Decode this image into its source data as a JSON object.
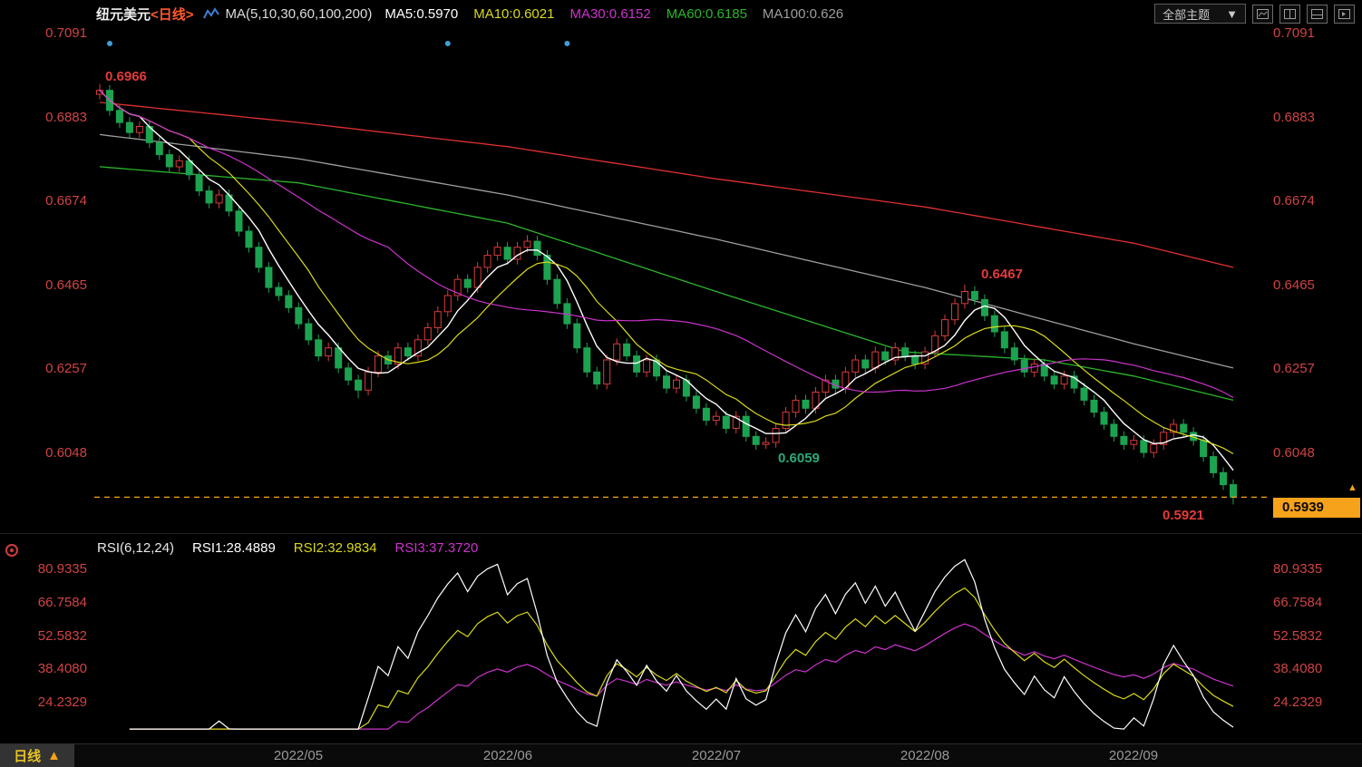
{
  "header": {
    "symbol": "纽元美元",
    "period_tag": "<日线>",
    "ma_group_label": "MA(5,10,30,60,100,200)",
    "ma_items": [
      {
        "label": "MA5:0.5970",
        "color": "#ffffff"
      },
      {
        "label": "MA10:0.6021",
        "color": "#d9d919"
      },
      {
        "label": "MA30:0.6152",
        "color": "#cc33cc"
      },
      {
        "label": "MA60:0.6185",
        "color": "#2ab52a"
      },
      {
        "label": "MA100:0.626",
        "color": "#9e9e9e"
      }
    ],
    "theme_button": {
      "label": "全部主题",
      "arrow": "▼"
    }
  },
  "rsi_header": {
    "label": "RSI(6,12,24)",
    "label_color": "#e8e8e8",
    "items": [
      {
        "label": "RSI1:28.4889",
        "color": "#ffffff"
      },
      {
        "label": "RSI2:32.9834",
        "color": "#d9d919"
      },
      {
        "label": "RSI3:37.3720",
        "color": "#cc33cc"
      }
    ]
  },
  "footer": {
    "period_label": "日线",
    "period_label_color": "#e8c321",
    "arrow": "▲",
    "arrow_color": "#f7a21b"
  },
  "chart_data": {
    "type": "candlestick",
    "title": "纽元美元 日线 (NZD/USD daily with MA overlays and RSI)",
    "price_axis_ticks": [
      0.7091,
      0.6883,
      0.6674,
      0.6465,
      0.6257,
      0.6048
    ],
    "rsi_axis_ticks": [
      80.9335,
      66.7584,
      52.5832,
      38.408,
      24.2329
    ],
    "x_labels": [
      {
        "label": "2022/05",
        "day": 20
      },
      {
        "label": "2022/06",
        "day": 41
      },
      {
        "label": "2022/07",
        "day": 62
      },
      {
        "label": "2022/08",
        "day": 83
      },
      {
        "label": "2022/09",
        "day": 104
      }
    ],
    "current_price": 0.5939,
    "annotations": {
      "april_high": {
        "text": "0.6966",
        "color": "#e23b3b"
      },
      "august_high": {
        "text": "0.6467",
        "color": "#e23b3b"
      },
      "july_low": {
        "text": "0.6059",
        "color": "#2aa87a"
      },
      "sept_low": {
        "text": "0.5921",
        "color": "#e23b3b"
      }
    },
    "colors": {
      "axis_price": "#d04343",
      "axis_date": "#999999",
      "up": "#d93a3a",
      "down": "#1ca350",
      "current_line": "#f7a21b",
      "dot": "#3f9fd8"
    },
    "candles": {
      "first_open": 0.694,
      "wick": 0.0013,
      "closes": [
        0.695,
        0.69,
        0.687,
        0.6845,
        0.686,
        0.682,
        0.679,
        0.676,
        0.6775,
        0.674,
        0.67,
        0.667,
        0.669,
        0.665,
        0.66,
        0.656,
        0.651,
        0.646,
        0.644,
        0.641,
        0.637,
        0.633,
        0.629,
        0.631,
        0.626,
        0.623,
        0.6205,
        0.625,
        0.629,
        0.627,
        0.631,
        0.629,
        0.633,
        0.636,
        0.64,
        0.644,
        0.648,
        0.646,
        0.651,
        0.654,
        0.656,
        0.653,
        0.656,
        0.6575,
        0.654,
        0.648,
        0.642,
        0.637,
        0.631,
        0.625,
        0.622,
        0.628,
        0.632,
        0.629,
        0.625,
        0.628,
        0.624,
        0.621,
        0.623,
        0.619,
        0.616,
        0.613,
        0.614,
        0.611,
        0.614,
        0.609,
        0.607,
        0.6075,
        0.611,
        0.615,
        0.618,
        0.616,
        0.62,
        0.623,
        0.621,
        0.625,
        0.628,
        0.626,
        0.63,
        0.628,
        0.631,
        0.629,
        0.627,
        0.63,
        0.634,
        0.638,
        0.642,
        0.645,
        0.643,
        0.639,
        0.635,
        0.631,
        0.628,
        0.625,
        0.627,
        0.624,
        0.622,
        0.624,
        0.621,
        0.618,
        0.615,
        0.612,
        0.609,
        0.607,
        0.608,
        0.605,
        0.607,
        0.61,
        0.612,
        0.61,
        0.608,
        0.604,
        0.6,
        0.597,
        0.5939
      ],
      "extremes": {
        "0": {
          "h": 0.6966
        },
        "26": {
          "l": 0.6185
        },
        "43": {
          "h": 0.659
        },
        "67": {
          "l": 0.6059
        },
        "87": {
          "h": 0.6467
        },
        "114": {
          "l": 0.5921
        }
      }
    },
    "ma_short": [
      {
        "period": 5,
        "color": "#ffffff"
      },
      {
        "period": 10,
        "color": "#d9d919"
      },
      {
        "period": 30,
        "color": "#cc33cc"
      }
    ],
    "ma_long": [
      {
        "name": "MA60",
        "color": "#2ab52a",
        "points": [
          [
            0,
            0.676
          ],
          [
            20,
            0.672
          ],
          [
            41,
            0.662
          ],
          [
            62,
            0.645
          ],
          [
            81,
            0.63
          ],
          [
            95,
            0.628
          ],
          [
            104,
            0.624
          ],
          [
            114,
            0.618
          ]
        ]
      },
      {
        "name": "MA100",
        "color": "#9e9e9e",
        "points": [
          [
            0,
            0.684
          ],
          [
            20,
            0.678
          ],
          [
            41,
            0.669
          ],
          [
            62,
            0.658
          ],
          [
            83,
            0.646
          ],
          [
            104,
            0.632
          ],
          [
            114,
            0.626
          ]
        ]
      },
      {
        "name": "MA200",
        "color": "#e03030",
        "points": [
          [
            0,
            0.692
          ],
          [
            20,
            0.687
          ],
          [
            41,
            0.681
          ],
          [
            62,
            0.673
          ],
          [
            83,
            0.666
          ],
          [
            104,
            0.657
          ],
          [
            114,
            0.651
          ]
        ]
      }
    ],
    "rsi": {
      "periods": [
        6,
        12,
        24
      ],
      "colors": [
        "#ffffff",
        "#d9d919",
        "#cc33cc"
      ],
      "start_index": 3
    },
    "top_dot_days": [
      1,
      35,
      47
    ]
  }
}
